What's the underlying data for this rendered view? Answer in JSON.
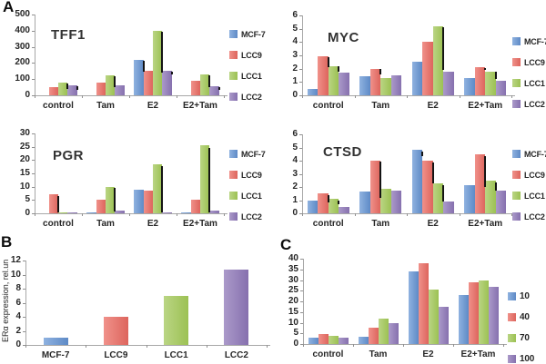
{
  "panels": {
    "a": "A",
    "b": "B",
    "c": "C"
  },
  "colors": {
    "blue": [
      "#8fb2e0",
      "#5e8ac6"
    ],
    "red": [
      "#f0918a",
      "#dd655d"
    ],
    "green": [
      "#bad584",
      "#9cc153"
    ],
    "purple": [
      "#ab9aca",
      "#8670ae"
    ],
    "shadow": "#141414"
  },
  "chart_data": [
    {
      "id": "tff1",
      "type": "grouped-bar",
      "title": "TFF1",
      "categories": [
        "control",
        "Tam",
        "E2",
        "E2+Tam"
      ],
      "ylim": [
        0,
        500
      ],
      "yticks": [
        0,
        100,
        200,
        300,
        400,
        500
      ],
      "grid": false,
      "legend_position": "right",
      "series": [
        {
          "name": "MCF-7",
          "colors": [
            "#8fb2e0",
            "#5e8ac6"
          ],
          "values": [
            0,
            0,
            220,
            0
          ]
        },
        {
          "name": "LCC9",
          "colors": [
            "#f0918a",
            "#dd655d"
          ],
          "values": [
            50,
            80,
            150,
            90
          ]
        },
        {
          "name": "LCC1",
          "colors": [
            "#bad584",
            "#9cc153"
          ],
          "values": [
            80,
            125,
            400,
            130
          ]
        },
        {
          "name": "LCC2",
          "colors": [
            "#ab9aca",
            "#8670ae"
          ],
          "values": [
            60,
            60,
            150,
            55
          ]
        }
      ],
      "marks": [
        {
          "cat": 0,
          "series": 2,
          "lo": 40,
          "hi": 75
        },
        {
          "cat": 0,
          "series": 3,
          "lo": 35,
          "hi": 57
        },
        {
          "cat": 1,
          "series": 2,
          "lo": 50,
          "hi": 120
        },
        {
          "cat": 2,
          "series": 0,
          "lo": 145,
          "hi": 212
        },
        {
          "cat": 2,
          "series": 2,
          "lo": 140,
          "hi": 392
        },
        {
          "cat": 2,
          "series": 3,
          "lo": 130,
          "hi": 147
        },
        {
          "cat": 3,
          "series": 2,
          "lo": 48,
          "hi": 126
        },
        {
          "cat": 3,
          "series": 3,
          "lo": 33,
          "hi": 50
        }
      ]
    },
    {
      "id": "myc",
      "type": "grouped-bar",
      "title": "MYC",
      "categories": [
        "control",
        "Tam",
        "E2",
        "E2+Tam"
      ],
      "ylim": [
        0,
        6
      ],
      "yticks": [
        0,
        1,
        2,
        3,
        4,
        5,
        6
      ],
      "grid": false,
      "legend_position": "right",
      "series": [
        {
          "name": "MCF-7",
          "colors": [
            "#8fb2e0",
            "#5e8ac6"
          ],
          "values": [
            0.5,
            1.45,
            2.55,
            1.3
          ]
        },
        {
          "name": "LCC9",
          "colors": [
            "#f0918a",
            "#dd655d"
          ],
          "values": [
            2.9,
            2.0,
            4.0,
            2.1
          ]
        },
        {
          "name": "LCC1",
          "colors": [
            "#bad584",
            "#9cc153"
          ],
          "values": [
            2.2,
            1.3,
            5.2,
            1.8
          ]
        },
        {
          "name": "LCC2",
          "colors": [
            "#ab9aca",
            "#8670ae"
          ],
          "values": [
            1.7,
            1.5,
            1.8,
            1.1
          ]
        }
      ],
      "marks": [
        {
          "cat": 0,
          "series": 1,
          "lo": 2.1,
          "hi": 2.85
        },
        {
          "cat": 0,
          "series": 2,
          "lo": 1.8,
          "hi": 2.15
        },
        {
          "cat": 1,
          "series": 1,
          "lo": 1.55,
          "hi": 1.95
        },
        {
          "cat": 2,
          "series": 2,
          "lo": 1.9,
          "hi": 5.1
        },
        {
          "cat": 3,
          "series": 1,
          "lo": 1.9,
          "hi": 2.05
        },
        {
          "cat": 3,
          "series": 2,
          "lo": 1.2,
          "hi": 1.75
        }
      ]
    },
    {
      "id": "pgr",
      "type": "grouped-bar",
      "title": "PGR",
      "categories": [
        "control",
        "Tam",
        "E2",
        "E2+Tam"
      ],
      "ylim": [
        0,
        30
      ],
      "yticks": [
        0,
        5,
        10,
        15,
        20,
        25,
        30
      ],
      "grid": false,
      "legend_position": "right",
      "series": [
        {
          "name": "MCF-7",
          "colors": [
            "#8fb2e0",
            "#5e8ac6"
          ],
          "values": [
            0,
            0.2,
            9,
            0.2
          ]
        },
        {
          "name": "LCC9",
          "colors": [
            "#f0918a",
            "#dd655d"
          ],
          "values": [
            7,
            5,
            8.5,
            5
          ]
        },
        {
          "name": "LCC1",
          "colors": [
            "#bad584",
            "#9cc153"
          ],
          "values": [
            0.5,
            10,
            18.5,
            25.5
          ]
        },
        {
          "name": "LCC2",
          "colors": [
            "#ab9aca",
            "#8670ae"
          ],
          "values": [
            0.2,
            1,
            0.5,
            1
          ]
        }
      ],
      "marks": [
        {
          "cat": 0,
          "series": 1,
          "lo": 0.4,
          "hi": 6.6
        },
        {
          "cat": 1,
          "series": 2,
          "lo": 0.8,
          "hi": 9.7
        },
        {
          "cat": 2,
          "series": 2,
          "lo": 0.5,
          "hi": 17.8
        },
        {
          "cat": 3,
          "series": 2,
          "lo": 0.5,
          "hi": 24.6
        }
      ]
    },
    {
      "id": "ctsd",
      "type": "grouped-bar",
      "title": "CTSD",
      "categories": [
        "control",
        "Tam",
        "E2",
        "E2+Tam"
      ],
      "ylim": [
        0,
        6
      ],
      "yticks": [
        0,
        1,
        2,
        3,
        4,
        5,
        6
      ],
      "grid": false,
      "legend_position": "right",
      "series": [
        {
          "name": "MCF-7",
          "colors": [
            "#8fb2e0",
            "#5e8ac6"
          ],
          "values": [
            1.0,
            1.65,
            4.8,
            2.15
          ]
        },
        {
          "name": "LCC9",
          "colors": [
            "#f0918a",
            "#dd655d"
          ],
          "values": [
            1.5,
            4.0,
            4.0,
            4.5
          ]
        },
        {
          "name": "LCC1",
          "colors": [
            "#bad584",
            "#9cc153"
          ],
          "values": [
            1.1,
            1.85,
            2.25,
            2.5
          ]
        },
        {
          "name": "LCC2",
          "colors": [
            "#ab9aca",
            "#8670ae"
          ],
          "values": [
            0.5,
            1.7,
            0.9,
            1.7
          ]
        }
      ],
      "marks": [
        {
          "cat": 0,
          "series": 1,
          "lo": 0.85,
          "hi": 1.4
        },
        {
          "cat": 0,
          "series": 2,
          "lo": 0.7,
          "hi": 1.0
        },
        {
          "cat": 1,
          "series": 1,
          "lo": 1.2,
          "hi": 3.9
        },
        {
          "cat": 2,
          "series": 0,
          "lo": 4.35,
          "hi": 4.7
        },
        {
          "cat": 2,
          "series": 1,
          "lo": 2.3,
          "hi": 3.85
        },
        {
          "cat": 2,
          "series": 2,
          "lo": 0.9,
          "hi": 2.15
        },
        {
          "cat": 3,
          "series": 1,
          "lo": 2.0,
          "hi": 4.35
        },
        {
          "cat": 3,
          "series": 2,
          "lo": 1.7,
          "hi": 2.35
        }
      ]
    },
    {
      "id": "erb",
      "type": "bar",
      "title": "",
      "ylabel": "ERα expression, rel.un",
      "categories": [
        "MCF-7",
        "LCC9",
        "LCC1",
        "LCC2"
      ],
      "ylim": [
        0,
        12
      ],
      "yticks": [
        0,
        2,
        4,
        6,
        8,
        10,
        12
      ],
      "grid": false,
      "legend_position": "none",
      "bars": [
        {
          "label": "MCF-7",
          "value": 1.0,
          "colors": [
            "#8fb2e0",
            "#5e8ac6"
          ]
        },
        {
          "label": "LCC9",
          "value": 4.0,
          "colors": [
            "#f0918a",
            "#dd655d"
          ]
        },
        {
          "label": "LCC1",
          "value": 7.0,
          "colors": [
            "#bad584",
            "#9cc153"
          ]
        },
        {
          "label": "LCC2",
          "value": 10.7,
          "colors": [
            "#ab9aca",
            "#8670ae"
          ]
        }
      ]
    },
    {
      "id": "dose",
      "type": "grouped-bar",
      "title": "",
      "categories": [
        "control",
        "Tam",
        "E2",
        "E2+Tam"
      ],
      "ylim": [
        0,
        40
      ],
      "yticks": [
        0,
        5,
        10,
        15,
        20,
        25,
        30,
        35,
        40
      ],
      "grid": false,
      "legend_position": "right",
      "series": [
        {
          "name": "10",
          "colors": [
            "#8fb2e0",
            "#5e8ac6"
          ],
          "values": [
            3,
            3.5,
            34,
            23
          ]
        },
        {
          "name": "40",
          "colors": [
            "#f0918a",
            "#dd655d"
          ],
          "values": [
            4.5,
            7.5,
            38,
            29
          ]
        },
        {
          "name": "70",
          "colors": [
            "#bad584",
            "#9cc153"
          ],
          "values": [
            4,
            12,
            25.5,
            30
          ]
        },
        {
          "name": "100",
          "colors": [
            "#ab9aca",
            "#8670ae"
          ],
          "values": [
            3,
            10,
            17.5,
            27
          ]
        }
      ],
      "marks": []
    }
  ]
}
